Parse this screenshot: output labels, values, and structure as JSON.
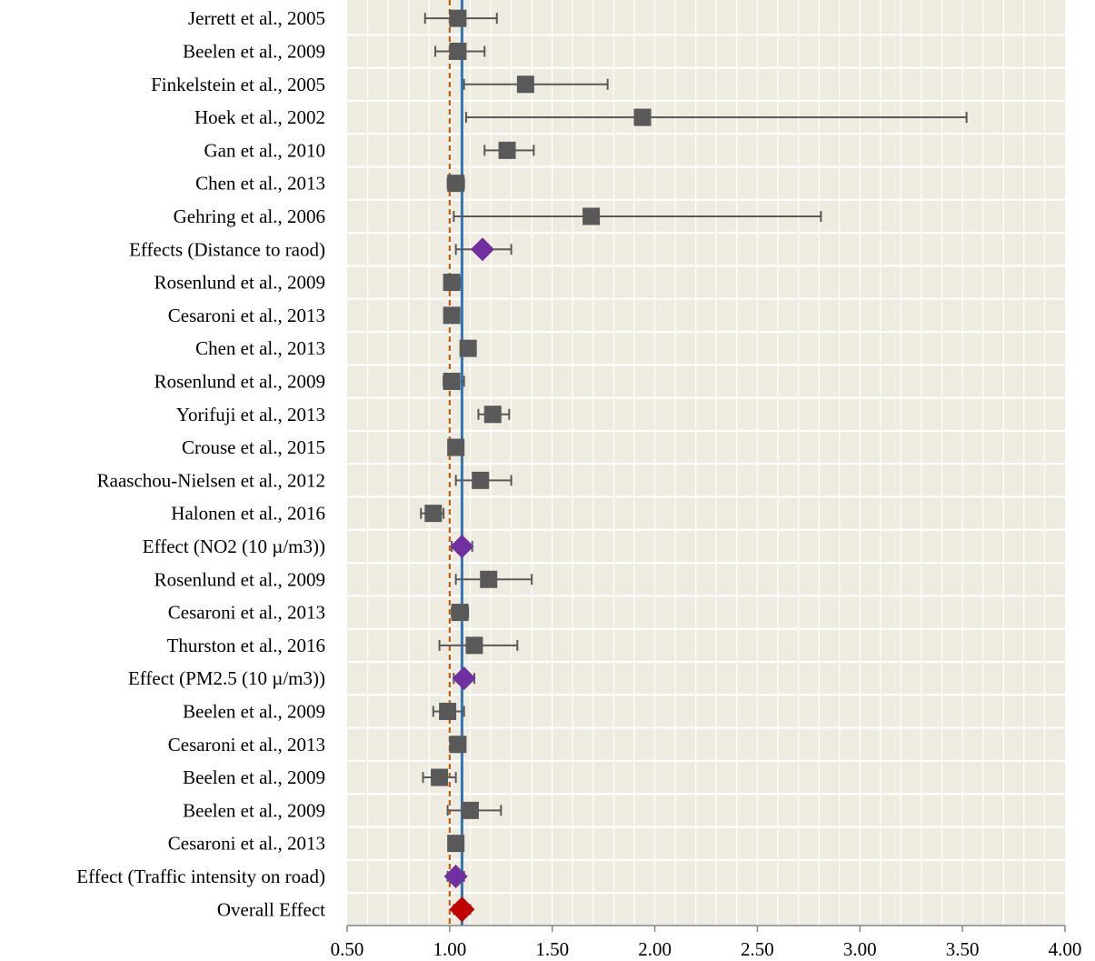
{
  "chart_data": {
    "type": "scatter",
    "title": "",
    "xlabel": "",
    "ylabel": "",
    "xlim": [
      0.5,
      4.0
    ],
    "x_ticks": [
      "0.50",
      "1.00",
      "1.50",
      "2.00",
      "2.50",
      "3.00",
      "3.50",
      "4.00"
    ],
    "grid": "vertical minor lines every 0.1, horizontal separators between rows",
    "reference_lines": {
      "null_effect": 1.0,
      "overall_effect": 1.06
    },
    "colors": {
      "plot_background": "#eeebe0",
      "study_marker": "#595959",
      "pooled_marker": "#7030a0",
      "overall_marker": "#c00000",
      "overall_line": "#2e75b6",
      "null_line": "#c55a11",
      "error_bar": "#595959"
    },
    "rows": [
      {
        "label": "Jerrett et al., 2005",
        "kind": "study",
        "effect": 1.04,
        "lower": 0.88,
        "upper": 1.23
      },
      {
        "label": "Beelen et al., 2009",
        "kind": "study",
        "effect": 1.04,
        "lower": 0.93,
        "upper": 1.17
      },
      {
        "label": "Finkelstein et al., 2005",
        "kind": "study",
        "effect": 1.37,
        "lower": 1.07,
        "upper": 1.77
      },
      {
        "label": "Hoek et al., 2002",
        "kind": "study",
        "effect": 1.94,
        "lower": 1.08,
        "upper": 3.52
      },
      {
        "label": "Gan et al., 2010",
        "kind": "study",
        "effect": 1.28,
        "lower": 1.17,
        "upper": 1.41
      },
      {
        "label": "Chen et al., 2013",
        "kind": "study",
        "effect": 1.03,
        "lower": 0.99,
        "upper": 1.07
      },
      {
        "label": "Gehring et al., 2006",
        "kind": "study",
        "effect": 1.69,
        "lower": 1.02,
        "upper": 2.81
      },
      {
        "label": "Effects (Distance to raod)",
        "kind": "pooled",
        "effect": 1.16,
        "lower": 1.03,
        "upper": 1.3
      },
      {
        "label": "Rosenlund et al., 2009",
        "kind": "study",
        "effect": 1.01,
        "lower": 0.98,
        "upper": 1.05
      },
      {
        "label": "Cesaroni et al., 2013",
        "kind": "study",
        "effect": 1.01,
        "lower": 0.98,
        "upper": 1.03
      },
      {
        "label": "Chen et al., 2013",
        "kind": "study",
        "effect": 1.09,
        "lower": 1.06,
        "upper": 1.12
      },
      {
        "label": "Rosenlund et al., 2009",
        "kind": "study",
        "effect": 1.01,
        "lower": 0.97,
        "upper": 1.07
      },
      {
        "label": "Yorifuji et al., 2013",
        "kind": "study",
        "effect": 1.21,
        "lower": 1.14,
        "upper": 1.29
      },
      {
        "label": "Crouse et al., 2015",
        "kind": "study",
        "effect": 1.03,
        "lower": 1.0,
        "upper": 1.05
      },
      {
        "label": "Raaschou-Nielsen et al., 2012",
        "kind": "study",
        "effect": 1.15,
        "lower": 1.03,
        "upper": 1.3
      },
      {
        "label": "Halonen et al., 2016",
        "kind": "study",
        "effect": 0.92,
        "lower": 0.86,
        "upper": 0.97
      },
      {
        "label": "Effect (NO2 (10 µ/m3))",
        "kind": "pooled",
        "effect": 1.06,
        "lower": 1.01,
        "upper": 1.11
      },
      {
        "label": "Rosenlund et al., 2009",
        "kind": "study",
        "effect": 1.19,
        "lower": 1.03,
        "upper": 1.4
      },
      {
        "label": "Cesaroni et al., 2013",
        "kind": "study",
        "effect": 1.05,
        "lower": 1.01,
        "upper": 1.09
      },
      {
        "label": "Thurston et al., 2016",
        "kind": "study",
        "effect": 1.12,
        "lower": 0.95,
        "upper": 1.33
      },
      {
        "label": "Effect (PM2.5 (10 µ/m3))",
        "kind": "pooled",
        "effect": 1.07,
        "lower": 1.02,
        "upper": 1.12
      },
      {
        "label": "Beelen et al., 2009",
        "kind": "study",
        "effect": 0.99,
        "lower": 0.92,
        "upper": 1.07
      },
      {
        "label": "Cesaroni et al., 2013",
        "kind": "study",
        "effect": 1.04,
        "lower": 1.01,
        "upper": 1.07
      },
      {
        "label": "Beelen et al., 2009",
        "kind": "study",
        "effect": 0.95,
        "lower": 0.87,
        "upper": 1.03
      },
      {
        "label": "Beelen et al., 2009",
        "kind": "study",
        "effect": 1.1,
        "lower": 0.99,
        "upper": 1.25
      },
      {
        "label": "Cesaroni et al., 2013",
        "kind": "study",
        "effect": 1.03,
        "lower": 1.0,
        "upper": 1.05
      },
      {
        "label": "Effect (Traffic intensity on road)",
        "kind": "pooled",
        "effect": 1.03,
        "lower": 0.99,
        "upper": 1.07
      },
      {
        "label": "Overall Effect",
        "kind": "overall",
        "effect": 1.06,
        "lower": 1.02,
        "upper": 1.1
      }
    ]
  }
}
